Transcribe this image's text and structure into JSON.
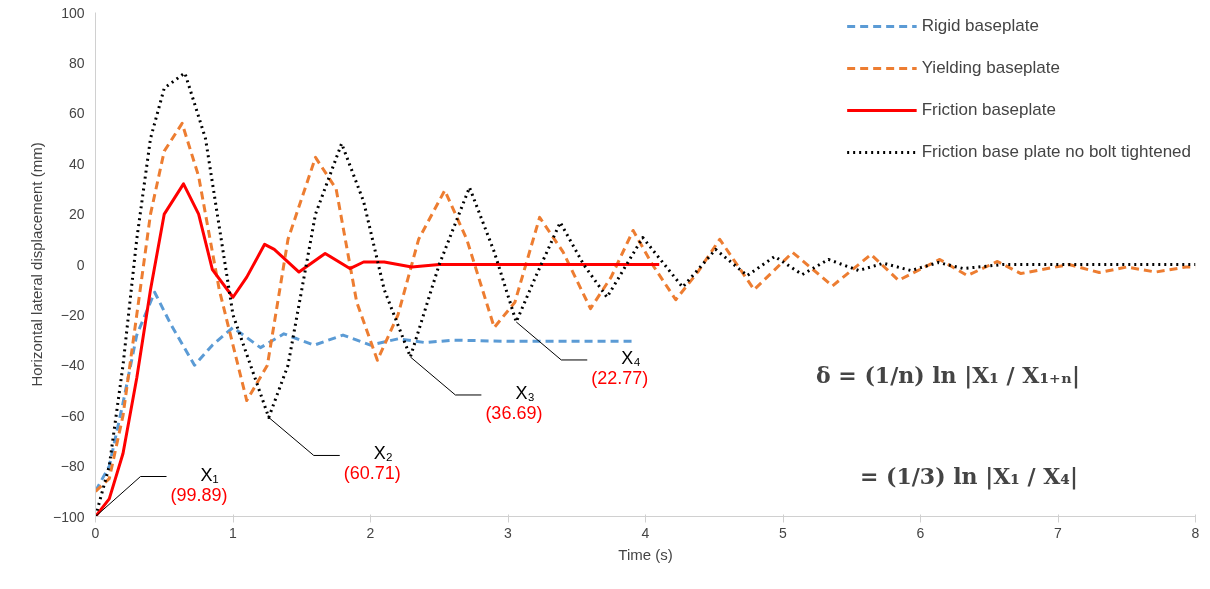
{
  "chart_data": {
    "type": "line",
    "xlabel": "Time (s)",
    "ylabel": "Horizontal lateral displacement (mm)",
    "xlim": [
      0,
      8
    ],
    "ylim": [
      -100,
      100
    ],
    "xticks": [
      0,
      1,
      2,
      3,
      4,
      5,
      6,
      7,
      8
    ],
    "yticks": [
      -100,
      -80,
      -60,
      -40,
      -20,
      0,
      20,
      40,
      60,
      80,
      100
    ],
    "grid": false,
    "legend": "top right",
    "series": [
      {
        "name": "Rigid baseplate",
        "color": "#5b9bd5",
        "line_style": "dashed",
        "x": [
          0,
          0.1,
          0.2,
          0.3,
          0.43,
          0.55,
          0.72,
          0.85,
          1.0,
          1.2,
          1.37,
          1.59,
          1.8,
          2.0,
          2.2,
          2.4,
          2.6,
          3.0,
          3.93
        ],
        "values": [
          -90,
          -80,
          -55,
          -28,
          -11,
          -24,
          -40,
          -32,
          -25,
          -33,
          -27.5,
          -32,
          -28,
          -32,
          -29.5,
          -31,
          -30,
          -30.5,
          -30.5
        ]
      },
      {
        "name": "Yielding baseplate",
        "color": "#ed7d31",
        "line_style": "dashed",
        "x": [
          0,
          0.1,
          0.2,
          0.3,
          0.4,
          0.5,
          0.63,
          0.75,
          0.9,
          1.1,
          1.25,
          1.4,
          1.6,
          1.75,
          1.9,
          2.05,
          2.2,
          2.35,
          2.54,
          2.7,
          2.9,
          3.05,
          3.23,
          3.4,
          3.6,
          3.75,
          3.91,
          4.05,
          4.22,
          4.38,
          4.54,
          4.79,
          5.07,
          5.36,
          5.64,
          5.84,
          6.14,
          6.34,
          6.56,
          6.73,
          7.08,
          7.3,
          7.5,
          7.71,
          7.93,
          8.0
        ],
        "values": [
          -90,
          -85,
          -60,
          -20,
          20,
          45,
          56,
          35,
          -10,
          -54,
          -40,
          10,
          42.5,
          30,
          -15,
          -38,
          -20,
          10,
          29.4,
          10,
          -25,
          -15,
          18.7,
          5,
          -17.5,
          -5,
          13.5,
          0,
          -14,
          -3,
          10,
          -10,
          4.8,
          -8.5,
          4,
          -6.3,
          2,
          -4.4,
          1.2,
          -3.6,
          0,
          -3.2,
          -1,
          -3,
          -1,
          -1
        ]
      },
      {
        "name": "Friction baseplate",
        "color": "#ff0000",
        "line_style": "solid",
        "x": [
          0,
          0.1,
          0.2,
          0.3,
          0.4,
          0.5,
          0.64,
          0.75,
          0.85,
          1.0,
          1.1,
          1.23,
          1.3,
          1.48,
          1.67,
          1.85,
          1.95,
          2.1,
          2.3,
          2.5,
          3.0,
          4.1
        ],
        "values": [
          -100,
          -93,
          -75,
          -45,
          -10,
          20,
          32,
          20,
          -2,
          -13,
          -5,
          8,
          6,
          -3,
          4.4,
          -1.6,
          1,
          1,
          -1,
          0,
          0,
          0
        ]
      },
      {
        "name": "Friction base plate no bolt tightened",
        "color": "#000000",
        "line_style": "dotted",
        "x": [
          0,
          0.1,
          0.2,
          0.3,
          0.4,
          0.5,
          0.65,
          0.8,
          1.0,
          1.26,
          1.4,
          1.6,
          1.79,
          1.95,
          2.1,
          2.29,
          2.5,
          2.72,
          2.9,
          3.06,
          3.2,
          3.38,
          3.55,
          3.72,
          3.98,
          4.27,
          4.51,
          4.74,
          4.94,
          5.14,
          5.33,
          5.55,
          5.73,
          5.93,
          6.13,
          6.31,
          6.6,
          8.0
        ],
        "values": [
          -100,
          -80,
          -40,
          10,
          50,
          70,
          76,
          50,
          -20,
          -60.7,
          -40,
          20,
          48,
          25,
          -10,
          -36.7,
          0,
          30.6,
          5,
          -22.8,
          -5,
          16.7,
          0,
          -13,
          10.7,
          -9,
          6,
          -4.4,
          3.2,
          -4,
          2,
          -2.4,
          0.5,
          -2.4,
          0.8,
          -1.6,
          0,
          0
        ]
      }
    ],
    "annotations": [
      {
        "text": "X₁\n(99.89)",
        "x": 0,
        "y": -100
      },
      {
        "text": "X₂\n(60.71)",
        "x": 1.26,
        "y": -60.7
      },
      {
        "text": "X₃\n(36.69)",
        "x": 2.29,
        "y": -36.7
      },
      {
        "text": "X₄\n(22.77)",
        "x": 3.06,
        "y": -22.8
      },
      "δ = (1/n) ln |X₁ / X₁₊ₙ|",
      "= (1/3) ln |X₁ / X₄|"
    ]
  }
}
